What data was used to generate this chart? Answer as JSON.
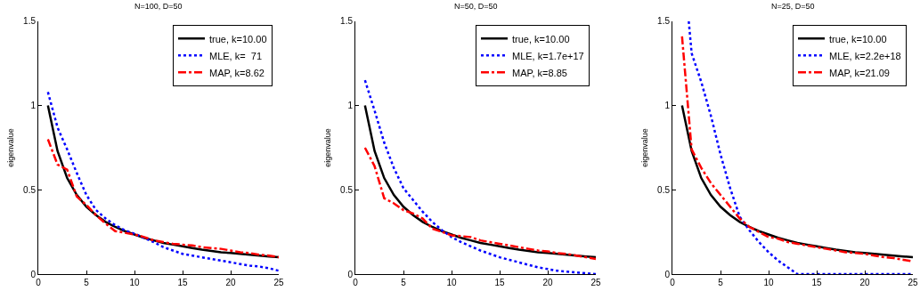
{
  "chart_data": [
    {
      "type": "line",
      "title": "N=100, D=50",
      "ylabel": "eigenvalue",
      "xlim": [
        0,
        25
      ],
      "ylim": [
        0,
        1.5
      ],
      "xticks": [
        0,
        5,
        10,
        15,
        20,
        25
      ],
      "yticks": [
        0,
        0.5,
        1,
        1.5
      ],
      "grid": false,
      "legend": "top right",
      "x": [
        1,
        2,
        3,
        4,
        5,
        6,
        7,
        8,
        9,
        10,
        11,
        12,
        13,
        14,
        15,
        16,
        17,
        18,
        19,
        20,
        21,
        22,
        23,
        24,
        25
      ],
      "series": [
        {
          "name": "true, k=10.00",
          "color": "#000000",
          "line_style": "solid",
          "values": [
            1.0,
            0.73,
            0.57,
            0.47,
            0.4,
            0.35,
            0.31,
            0.28,
            0.255,
            0.235,
            0.215,
            0.2,
            0.185,
            0.175,
            0.165,
            0.155,
            0.145,
            0.138,
            0.13,
            0.125,
            0.12,
            0.115,
            0.11,
            0.105,
            0.1
          ]
        },
        {
          "name": "MLE, k=  71",
          "color": "#0000ff",
          "line_style": "dotted",
          "values": [
            1.08,
            0.87,
            0.74,
            0.6,
            0.47,
            0.38,
            0.33,
            0.29,
            0.26,
            0.24,
            0.215,
            0.19,
            0.16,
            0.14,
            0.12,
            0.11,
            0.1,
            0.09,
            0.08,
            0.07,
            0.06,
            0.05,
            0.045,
            0.035,
            0.02
          ]
        },
        {
          "name": "MAP, k=8.62",
          "color": "#ff0000",
          "line_style": "dashdot",
          "values": [
            0.8,
            0.65,
            0.62,
            0.46,
            0.41,
            0.35,
            0.3,
            0.255,
            0.245,
            0.235,
            0.22,
            0.2,
            0.19,
            0.18,
            0.175,
            0.17,
            0.16,
            0.155,
            0.15,
            0.14,
            0.13,
            0.125,
            0.115,
            0.11,
            0.1
          ]
        }
      ]
    },
    {
      "type": "line",
      "title": "N=50, D=50",
      "ylabel": "eigenvalue",
      "xlim": [
        0,
        25
      ],
      "ylim": [
        0,
        1.5
      ],
      "xticks": [
        0,
        5,
        10,
        15,
        20,
        25
      ],
      "yticks": [
        0,
        0.5,
        1,
        1.5
      ],
      "grid": false,
      "legend": "top right",
      "x": [
        1,
        2,
        3,
        4,
        5,
        6,
        7,
        8,
        9,
        10,
        11,
        12,
        13,
        14,
        15,
        16,
        17,
        18,
        19,
        20,
        21,
        22,
        23,
        24,
        25
      ],
      "series": [
        {
          "name": "true, k=10.00",
          "color": "#000000",
          "line_style": "solid",
          "values": [
            1.0,
            0.73,
            0.57,
            0.47,
            0.4,
            0.35,
            0.31,
            0.28,
            0.255,
            0.235,
            0.215,
            0.2,
            0.185,
            0.175,
            0.165,
            0.155,
            0.145,
            0.138,
            0.13,
            0.125,
            0.12,
            0.115,
            0.11,
            0.105,
            0.1
          ]
        },
        {
          "name": "MLE, k=1.7e+17",
          "color": "#0000ff",
          "line_style": "dotted",
          "values": [
            1.15,
            0.97,
            0.78,
            0.63,
            0.51,
            0.44,
            0.37,
            0.31,
            0.26,
            0.22,
            0.19,
            0.165,
            0.14,
            0.12,
            0.1,
            0.085,
            0.07,
            0.055,
            0.04,
            0.03,
            0.02,
            0.015,
            0.01,
            0.005,
            0
          ]
        },
        {
          "name": "MAP, k=8.85",
          "color": "#ff0000",
          "line_style": "dashdot",
          "values": [
            0.75,
            0.64,
            0.45,
            0.42,
            0.38,
            0.36,
            0.33,
            0.27,
            0.25,
            0.23,
            0.225,
            0.22,
            0.2,
            0.19,
            0.18,
            0.17,
            0.16,
            0.15,
            0.14,
            0.135,
            0.125,
            0.12,
            0.11,
            0.1,
            0.09
          ]
        }
      ]
    },
    {
      "type": "line",
      "title": "N=25, D=50",
      "ylabel": "eigenvalue",
      "xlim": [
        0,
        25
      ],
      "ylim": [
        0,
        1.5
      ],
      "xticks": [
        0,
        5,
        10,
        15,
        20,
        25
      ],
      "yticks": [
        0,
        0.5,
        1,
        1.5
      ],
      "grid": false,
      "legend": "top right",
      "x": [
        1,
        2,
        3,
        4,
        5,
        6,
        7,
        8,
        9,
        10,
        11,
        12,
        13,
        14,
        15,
        16,
        17,
        18,
        19,
        20,
        21,
        22,
        23,
        24,
        25
      ],
      "series": [
        {
          "name": "true, k=10.00",
          "color": "#000000",
          "line_style": "solid",
          "values": [
            1.0,
            0.73,
            0.57,
            0.47,
            0.4,
            0.35,
            0.31,
            0.28,
            0.255,
            0.235,
            0.215,
            0.2,
            0.185,
            0.175,
            0.165,
            0.155,
            0.145,
            0.138,
            0.13,
            0.125,
            0.12,
            0.115,
            0.11,
            0.105,
            0.1
          ]
        },
        {
          "name": "MLE, k=2.2e+18",
          "color": "#0000ff",
          "line_style": "dotted",
          "x": [
            1.7,
            2,
            3,
            4,
            5,
            6,
            7,
            8,
            9,
            10,
            11,
            12,
            13,
            14,
            15,
            16,
            17,
            18,
            19,
            20,
            21,
            22,
            23,
            24,
            25
          ],
          "values": [
            1.5,
            1.31,
            1.14,
            0.94,
            0.71,
            0.51,
            0.34,
            0.26,
            0.19,
            0.13,
            0.08,
            0.04,
            0,
            0,
            0,
            0,
            0,
            0,
            0,
            0,
            0,
            0,
            0,
            0,
            0
          ]
        },
        {
          "name": "MAP, k=21.09",
          "color": "#ff0000",
          "line_style": "dashdot",
          "values": [
            1.41,
            0.74,
            0.63,
            0.54,
            0.47,
            0.4,
            0.33,
            0.28,
            0.25,
            0.22,
            0.21,
            0.19,
            0.18,
            0.17,
            0.16,
            0.15,
            0.14,
            0.13,
            0.125,
            0.12,
            0.11,
            0.1,
            0.095,
            0.085,
            0.075
          ]
        }
      ]
    }
  ]
}
